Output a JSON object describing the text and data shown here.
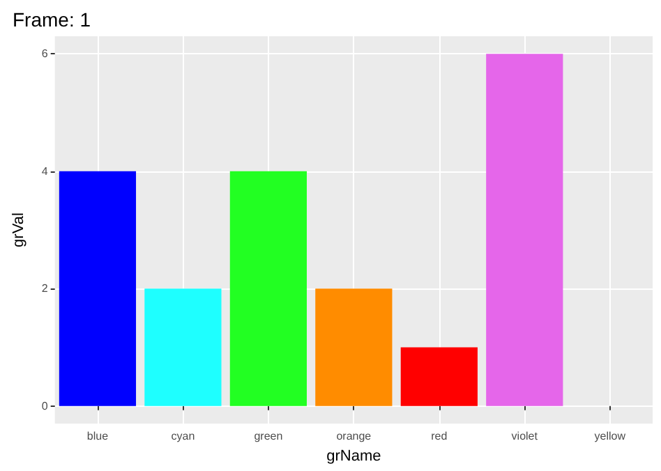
{
  "chart_data": {
    "type": "bar",
    "title": "Frame: 1",
    "xlabel": "grName",
    "ylabel": "grVal",
    "categories": [
      "blue",
      "cyan",
      "green",
      "orange",
      "red",
      "violet",
      "yellow"
    ],
    "values": [
      4,
      2,
      4,
      2,
      1,
      6,
      0
    ],
    "colors": [
      "#0000ff",
      "#1effff",
      "#22ff22",
      "#ff8c00",
      "#ff0000",
      "#e566ea",
      "#ffff00"
    ],
    "ylim": [
      -0.3,
      6.3
    ],
    "yticks": [
      0,
      2,
      4,
      6
    ],
    "grid": true
  }
}
